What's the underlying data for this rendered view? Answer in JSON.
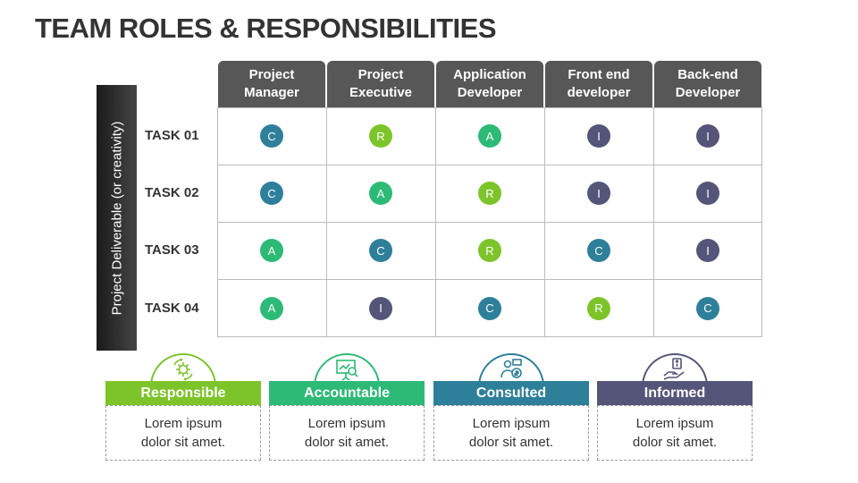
{
  "title": "TEAM ROLES & RESPONSIBILITIES",
  "side_label": "Project Deliverable (or creativity)",
  "roles": [
    {
      "line1": "Project",
      "line2": "Manager"
    },
    {
      "line1": "Project",
      "line2": "Executive"
    },
    {
      "line1": "Application",
      "line2": "Developer"
    },
    {
      "line1": "Front end",
      "line2": "developer"
    },
    {
      "line1": "Back-end",
      "line2": "Developer"
    }
  ],
  "tasks": [
    {
      "label": "TASK 01",
      "cells": [
        "C",
        "R",
        "A",
        "I",
        "I"
      ]
    },
    {
      "label": "TASK 02",
      "cells": [
        "C",
        "A",
        "R",
        "I",
        "I"
      ]
    },
    {
      "label": "TASK 03",
      "cells": [
        "A",
        "C",
        "R",
        "C",
        "I"
      ]
    },
    {
      "label": "TASK 04",
      "cells": [
        "A",
        "I",
        "C",
        "R",
        "C"
      ]
    }
  ],
  "colors": {
    "R": "#7dc42a",
    "A": "#2dba76",
    "C": "#2e7f9a",
    "I": "#55557a",
    "header": "#575757"
  },
  "legend": [
    {
      "key": "R",
      "label": "Responsible",
      "text": "Lorem ipsum dolor sit amet.",
      "icon": "gear-cycle-icon"
    },
    {
      "key": "A",
      "label": "Accountable",
      "text": "Lorem ipsum dolor sit amet.",
      "icon": "presentation-board-icon"
    },
    {
      "key": "C",
      "label": "Consulted",
      "text": "Lorem ipsum dolor sit amet.",
      "icon": "consultant-money-icon"
    },
    {
      "key": "I",
      "label": "Informed",
      "text": "Lorem ipsum dolor sit amet.",
      "icon": "hand-info-icon"
    }
  ]
}
